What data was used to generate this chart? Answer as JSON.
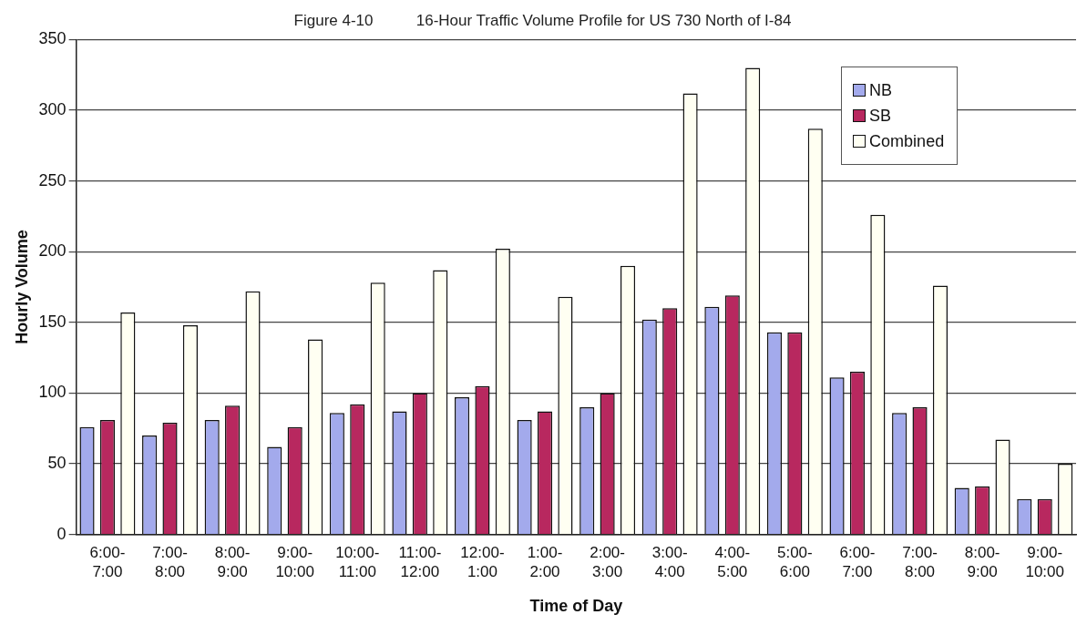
{
  "chart_data": {
    "type": "bar",
    "title": "Figure 4-10          16-Hour Traffic Volume Profile for US 730 North of I-84",
    "xlabel": "Time of Day",
    "ylabel": "Hourly Volume",
    "categories": [
      "6:00-7:00",
      "7:00-8:00",
      "8:00-9:00",
      "9:00-10:00",
      "10:00-11:00",
      "11:00-12:00",
      "12:00-1:00",
      "1:00-2:00",
      "2:00-3:00",
      "3:00-4:00",
      "4:00-5:00",
      "5:00-6:00",
      "6:00-7:00",
      "7:00-8:00",
      "8:00-9:00",
      "9:00-10:00"
    ],
    "series": [
      {
        "name": "NB",
        "color": "#a3aaec",
        "values": [
          76,
          70,
          81,
          62,
          86,
          87,
          97,
          81,
          90,
          152,
          161,
          143,
          111,
          86,
          33,
          25
        ]
      },
      {
        "name": "SB",
        "color": "#b8285f",
        "values": [
          81,
          79,
          91,
          76,
          92,
          100,
          105,
          87,
          100,
          160,
          169,
          143,
          115,
          90,
          34,
          25
        ]
      },
      {
        "name": "Combined",
        "color": "#fffff2",
        "values": [
          157,
          148,
          172,
          138,
          178,
          187,
          202,
          168,
          190,
          312,
          330,
          287,
          226,
          176,
          67,
          50
        ]
      }
    ],
    "ylim": [
      0,
      350
    ],
    "yticks": [
      0,
      50,
      100,
      150,
      200,
      250,
      300,
      350
    ],
    "grid": "y",
    "legend": "top right"
  }
}
